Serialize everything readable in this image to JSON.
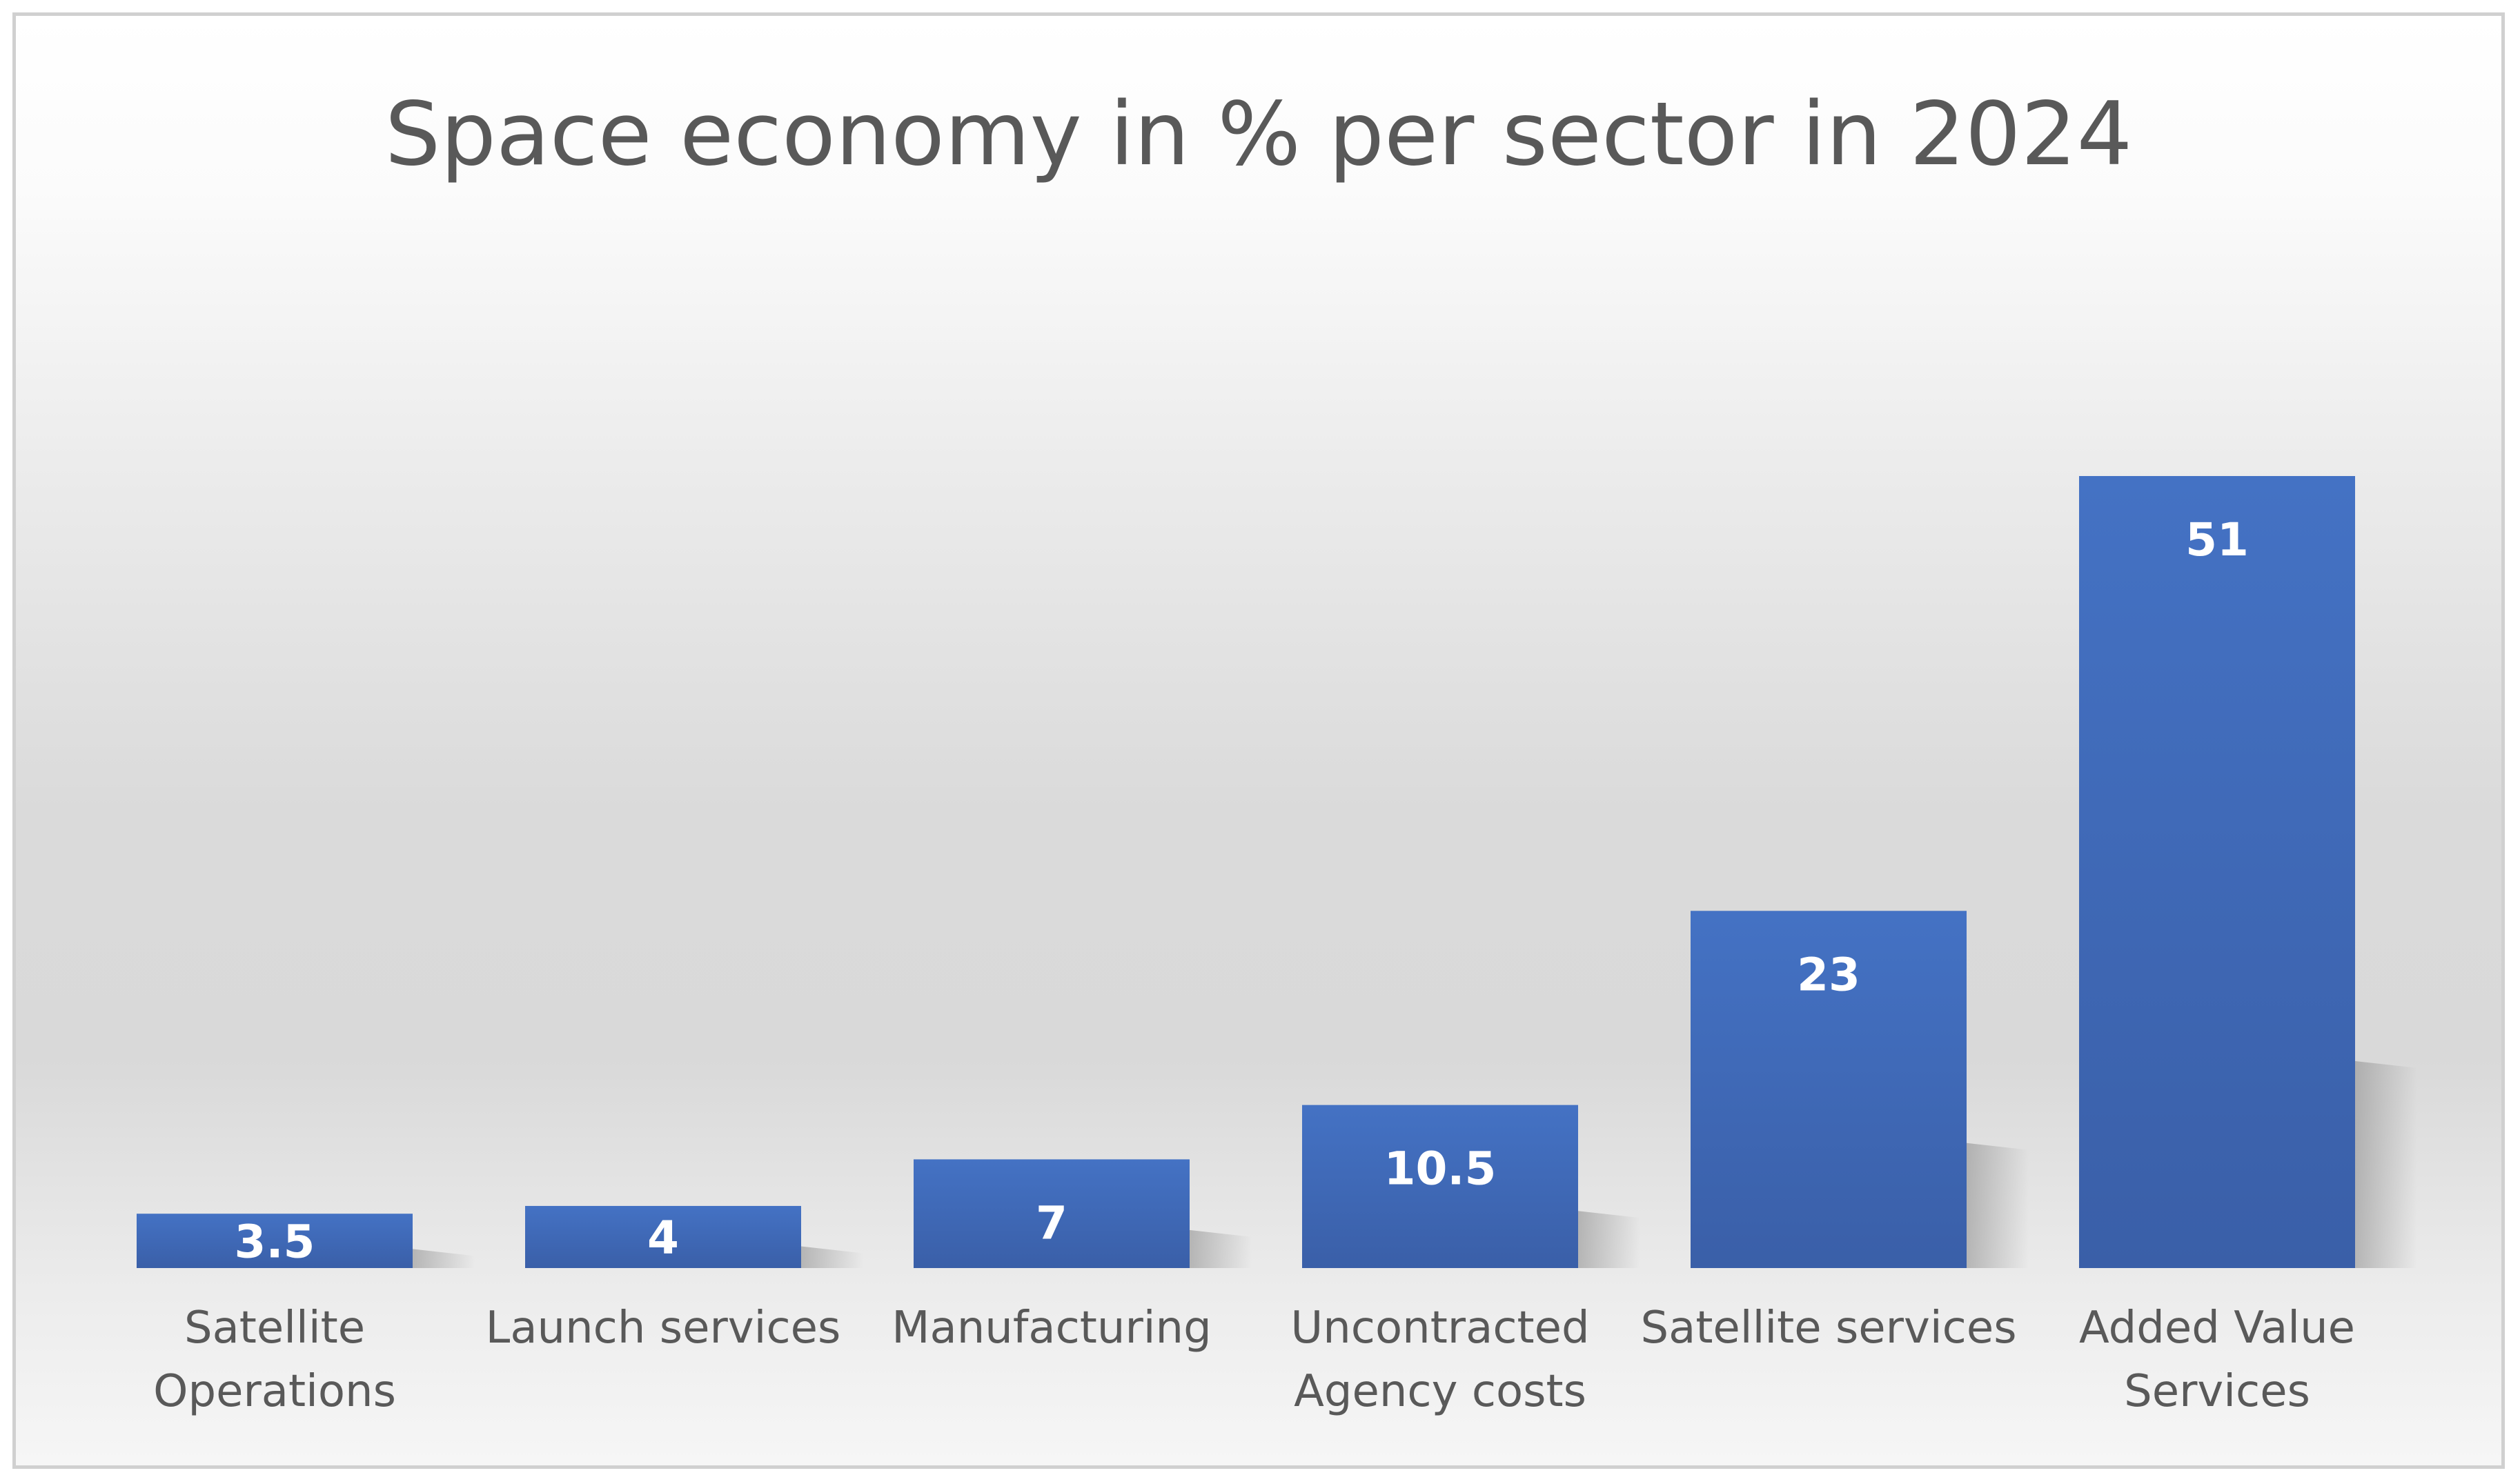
{
  "chart_data": {
    "type": "bar",
    "title": "Space economy in % per sector in 2024",
    "categories": [
      [
        "Satellite",
        "Operations"
      ],
      [
        "Launch services"
      ],
      [
        "Manufacturing"
      ],
      [
        "Uncontracted",
        "Agency costs"
      ],
      [
        "Satellite services"
      ],
      [
        "Added Value",
        "Services"
      ]
    ],
    "values": [
      3.5,
      4,
      7,
      10.5,
      23,
      51
    ],
    "data_labels": [
      "3.5",
      "4",
      "7",
      "10.5",
      "23",
      "51"
    ],
    "xlabel": "",
    "ylabel": "",
    "ylim": [
      0,
      51
    ],
    "grid": false,
    "legend": "none",
    "bar_color": "#4472C4",
    "bar_color_dark": "#3A5FA8"
  }
}
